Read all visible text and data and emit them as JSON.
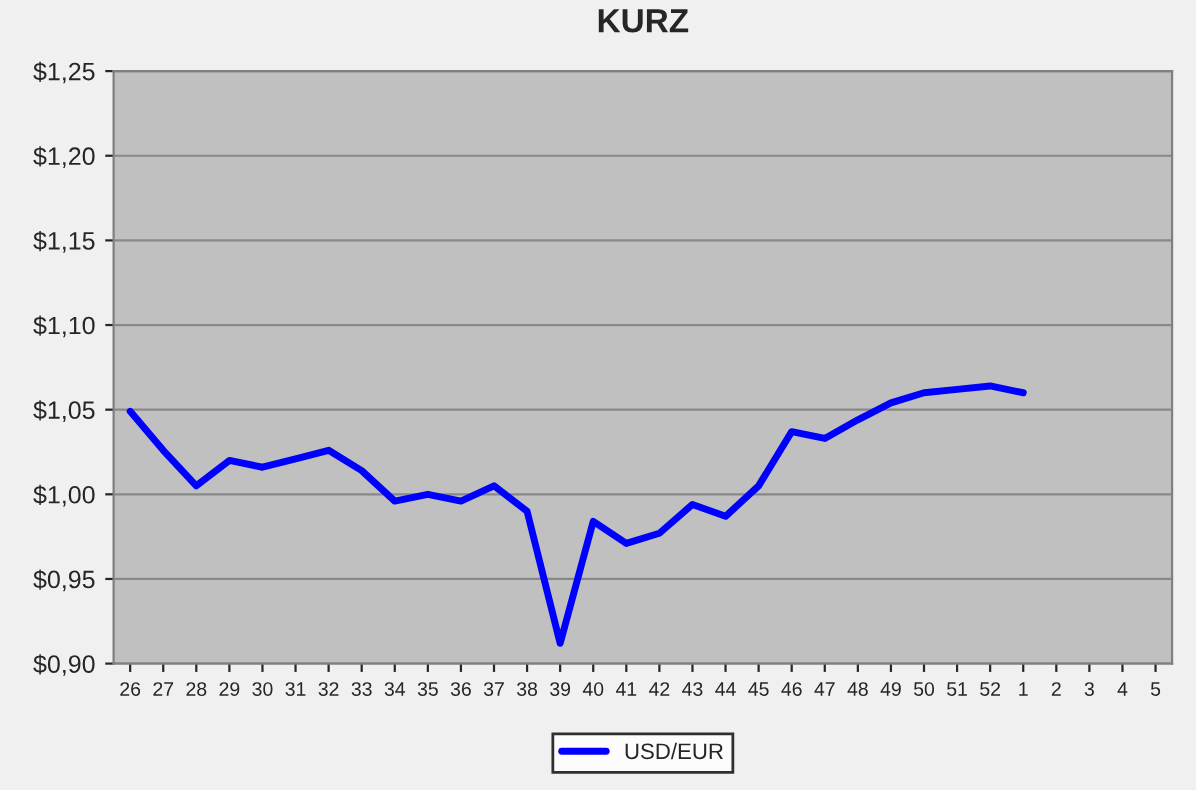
{
  "chart_data": {
    "type": "line",
    "title": "KURZ",
    "categories": [
      "26",
      "27",
      "28",
      "29",
      "30",
      "31",
      "32",
      "33",
      "34",
      "35",
      "36",
      "37",
      "38",
      "39",
      "40",
      "41",
      "42",
      "43",
      "44",
      "45",
      "46",
      "47",
      "48",
      "49",
      "50",
      "51",
      "52",
      "1",
      "2",
      "3",
      "4",
      "5"
    ],
    "series": [
      {
        "name": "USD/EUR",
        "color": "#0000ff",
        "values": [
          1.049,
          1.026,
          1.005,
          1.02,
          1.016,
          1.021,
          1.026,
          1.014,
          0.996,
          1.0,
          0.996,
          1.005,
          0.99,
          0.912,
          0.984,
          0.971,
          0.977,
          0.994,
          0.987,
          1.005,
          1.037,
          1.033,
          1.044,
          1.054,
          1.06,
          1.062,
          1.064,
          1.06,
          null,
          null,
          null,
          null
        ]
      }
    ],
    "ylim": [
      0.9,
      1.25
    ],
    "yticks": [
      {
        "value": 0.9,
        "label": "$0,90"
      },
      {
        "value": 0.95,
        "label": "$0,95"
      },
      {
        "value": 1.0,
        "label": "$1,00"
      },
      {
        "value": 1.05,
        "label": "$1,05"
      },
      {
        "value": 1.1,
        "label": "$1,10"
      },
      {
        "value": 1.15,
        "label": "$1,15"
      },
      {
        "value": 1.2,
        "label": "$1,20"
      },
      {
        "value": 1.25,
        "label": "$1,25"
      }
    ],
    "grid": "y",
    "legend": "bottom",
    "marker": "none",
    "line_style": "solid"
  }
}
